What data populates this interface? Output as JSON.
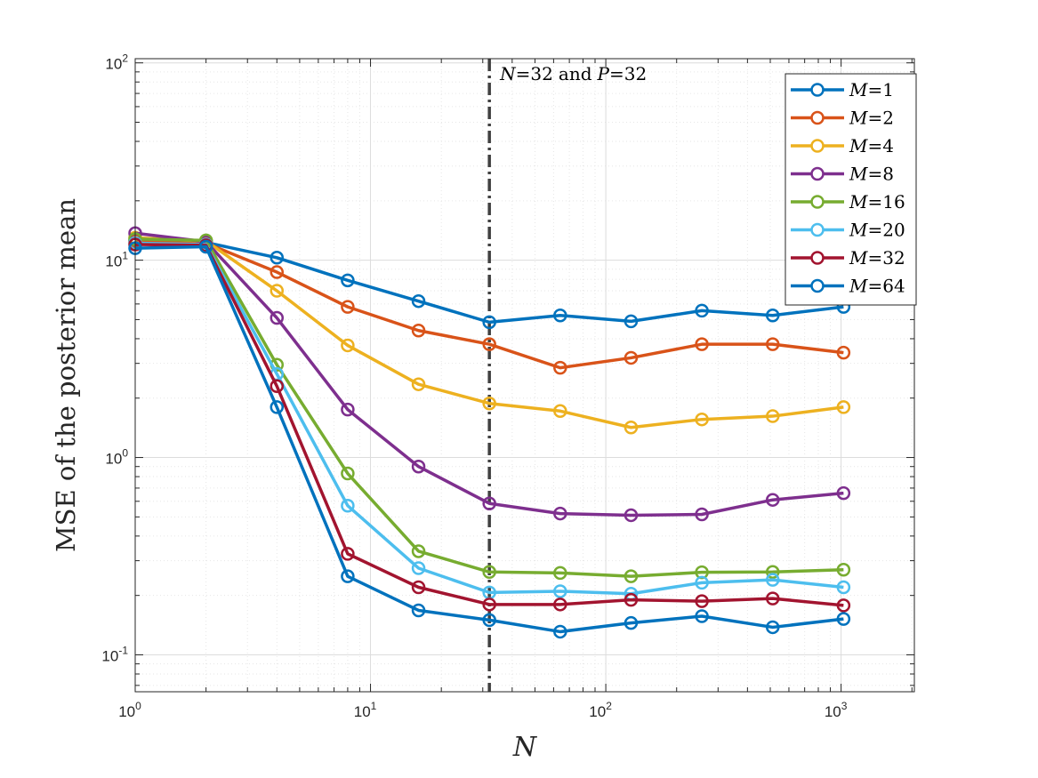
{
  "chart_data": {
    "type": "line",
    "title": "",
    "xlabel": "N",
    "ylabel": "MSE of the posterior mean",
    "xscale": "log",
    "yscale": "log",
    "xlim": [
      1,
      2048
    ],
    "ylim": [
      0.065,
      105
    ],
    "x_ticks": [
      {
        "base": "10",
        "exp": "0"
      },
      {
        "base": "10",
        "exp": "1"
      },
      {
        "base": "10",
        "exp": "2"
      },
      {
        "base": "10",
        "exp": "3"
      }
    ],
    "y_ticks": [
      {
        "base": "10",
        "exp": "-1"
      },
      {
        "base": "10",
        "exp": "0"
      },
      {
        "base": "10",
        "exp": "1"
      },
      {
        "base": "10",
        "exp": "2"
      }
    ],
    "grid": true,
    "legend_position": "top-right",
    "x": [
      1,
      2,
      4,
      8,
      16,
      32,
      64,
      128,
      256,
      512,
      1024
    ],
    "series": [
      {
        "name": "M=1",
        "var": "M",
        "eq": "=1",
        "color": "#0072BD",
        "values": [
          12.6,
          12.3,
          10.3,
          7.9,
          6.2,
          4.85,
          5.25,
          4.9,
          5.55,
          5.25,
          5.8
        ]
      },
      {
        "name": "M=2",
        "var": "M",
        "eq": "=2",
        "color": "#D95319",
        "values": [
          12.4,
          12.2,
          8.7,
          5.8,
          4.4,
          3.75,
          2.85,
          3.2,
          3.75,
          3.75,
          3.4
        ]
      },
      {
        "name": "M=4",
        "var": "M",
        "eq": "=4",
        "color": "#EDB120",
        "values": [
          13.0,
          12.5,
          7.0,
          3.7,
          2.35,
          1.88,
          1.72,
          1.42,
          1.56,
          1.62,
          1.8
        ]
      },
      {
        "name": "M=8",
        "var": "M",
        "eq": "=8",
        "color": "#7E2F8E",
        "values": [
          13.7,
          12.4,
          5.1,
          1.75,
          0.9,
          0.585,
          0.52,
          0.51,
          0.515,
          0.61,
          0.66
        ]
      },
      {
        "name": "M=16",
        "var": "M",
        "eq": "=16",
        "color": "#77AC30",
        "values": [
          12.8,
          12.6,
          2.95,
          0.83,
          0.335,
          0.263,
          0.26,
          0.25,
          0.262,
          0.263,
          0.27
        ]
      },
      {
        "name": "M=20",
        "var": "M",
        "eq": "=20",
        "color": "#4DBEEE",
        "values": [
          12.2,
          12.0,
          2.65,
          0.57,
          0.275,
          0.207,
          0.21,
          0.204,
          0.232,
          0.24,
          0.22
        ]
      },
      {
        "name": "M=32",
        "var": "M",
        "eq": "=32",
        "color": "#A2142F",
        "values": [
          12.0,
          11.9,
          2.3,
          0.325,
          0.22,
          0.18,
          0.18,
          0.19,
          0.187,
          0.193,
          0.178
        ]
      },
      {
        "name": "M=64",
        "var": "M",
        "eq": "=64",
        "color": "#0072BD",
        "values": [
          11.5,
          11.7,
          1.8,
          0.25,
          0.168,
          0.15,
          0.131,
          0.145,
          0.157,
          0.138,
          0.152
        ]
      }
    ],
    "vertical_line": {
      "x": 32,
      "style": "dash-dot",
      "color": "#404040"
    },
    "annotation": {
      "var1": "N",
      "eq1": "=32",
      "and": "and",
      "var2": "P",
      "eq2": "=32"
    }
  }
}
